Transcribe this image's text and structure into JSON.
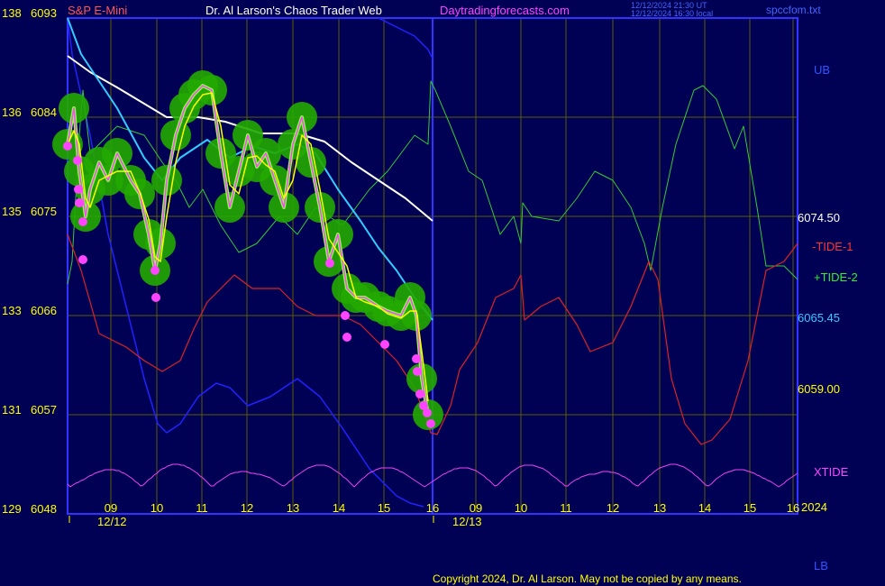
{
  "header": {
    "symbol": "S&P E-Mini",
    "title": "Dr. Al Larson's Chaos Trader Web",
    "site": "Daytradingforecasts.com",
    "stamp1": "12/12/2024 21:30 UT",
    "stamp2": "12/12/2024 16:30 local",
    "file": "spccfom.txt"
  },
  "colors": {
    "background": "#000055",
    "frame": "#3333ff",
    "grid": "#5c5c00",
    "price": "#ff44ff",
    "price_glow": "#22aa00",
    "yellow_avg": "#ffff00",
    "cyan_avg": "#33ccff",
    "white_avg": "#ffffff",
    "tide_green": "#33cc33",
    "tide_red": "#dd2222",
    "blue_line": "#2222ff",
    "xtide": "#ee44ee"
  },
  "chart_data": {
    "type": "line",
    "title": "S&P E-Mini",
    "y_left_labels": [
      {
        "a": "138",
        "b": "6093"
      },
      {
        "a": "136",
        "b": "6084"
      },
      {
        "a": "135",
        "b": "6075"
      },
      {
        "a": "133",
        "b": "6066"
      },
      {
        "a": "131",
        "b": "6057"
      },
      {
        "a": "129",
        "b": "6048"
      }
    ],
    "ylim": [
      6048,
      6093
    ],
    "x_ticks": [
      "09",
      "10",
      "11",
      "12",
      "13",
      "14",
      "15",
      "16",
      "09",
      "10",
      "11",
      "12",
      "13",
      "14",
      "15",
      "16"
    ],
    "dates": [
      "12/12",
      "12/13"
    ],
    "year": "2024",
    "right_labels": {
      "ub": "UB",
      "lb": "LB",
      "white_value": "6074.50",
      "tide1": "-TIDE-1",
      "tide2": "+TIDE-2",
      "cyan_value": "6065.45",
      "yellow_value": "6059.00",
      "xtide": "XTIDE"
    },
    "series": [
      {
        "name": "S&P E-Mini",
        "x": [
          9.0,
          9.5,
          10.0,
          10.5,
          11.0,
          11.5,
          12.0,
          12.5,
          13.0,
          13.5,
          14.0,
          14.5,
          15.0,
          15.5,
          16.0
        ],
        "y": [
          6081,
          6076,
          6072,
          6063,
          6079,
          6087,
          6077,
          6082,
          6079,
          6083,
          6072,
          6066,
          6065,
          6064,
          6053
        ]
      },
      {
        "name": "-TIDE-1",
        "x": [
          9,
          10,
          11,
          12,
          13,
          14,
          15,
          16,
          17,
          18,
          19,
          20,
          21,
          22,
          23,
          24
        ],
        "y": [
          6068,
          6062,
          6064,
          6070,
          6066,
          6072,
          6064,
          6054,
          6070,
          6066,
          6068,
          6064,
          6071,
          6056,
          6068,
          6070
        ]
      },
      {
        "name": "+TIDE-2",
        "x": [
          9,
          10,
          11,
          12,
          13,
          14,
          15,
          16,
          17,
          18,
          19,
          20,
          21,
          22,
          23,
          24
        ],
        "y": [
          6074,
          6076,
          6072,
          6075,
          6073,
          6078,
          6079,
          6087,
          6076,
          6078,
          6077,
          6073,
          6086,
          6080,
          6072,
          6071
        ]
      }
    ]
  },
  "copyright": "Copyright 2024, Dr. Al Larson. May not be copied by any means."
}
